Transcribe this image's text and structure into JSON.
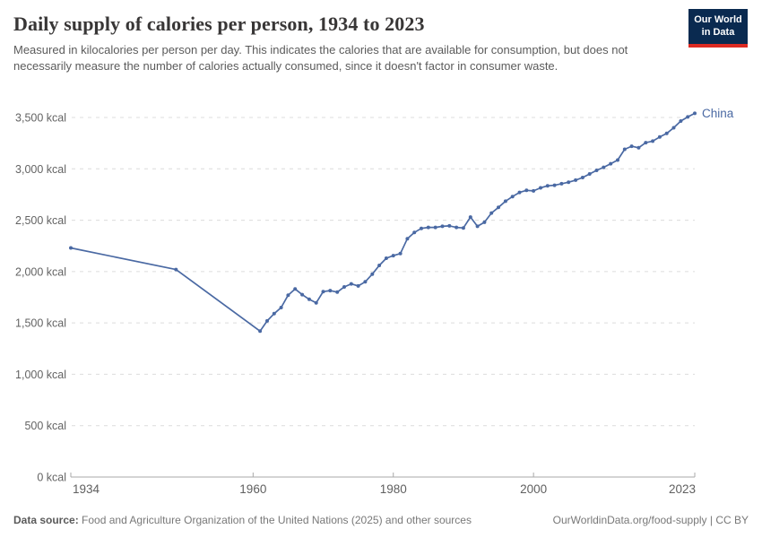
{
  "header": {
    "logo": {
      "line1": "Our World",
      "line2": "in Data"
    }
  },
  "chart_data": {
    "type": "line",
    "title": "Daily supply of calories per person, 1934 to 2023",
    "subtitle": "Measured in kilocalories per person per day. This indicates the calories that are available for consumption, but does not necessarily measure the number of calories actually consumed, since it doesn't factor in consumer waste.",
    "xlabel": "",
    "ylabel": "",
    "xlim": [
      1934,
      2023
    ],
    "ylim": [
      0,
      3500
    ],
    "x_ticks": [
      1934,
      1960,
      1980,
      2000,
      2023
    ],
    "y_ticks": [
      0,
      500,
      1000,
      1500,
      2000,
      2500,
      3000,
      3500
    ],
    "y_tick_suffix": " kcal",
    "grid": "horizontal-dashed",
    "legend_position": "end-of-line",
    "end_label": "China",
    "series": [
      {
        "name": "China",
        "color": "#4a69a3",
        "marker": "dot",
        "points": [
          [
            1934,
            2230
          ],
          [
            1949,
            2020
          ],
          [
            1961,
            1420
          ],
          [
            1962,
            1520
          ],
          [
            1963,
            1590
          ],
          [
            1964,
            1650
          ],
          [
            1965,
            1770
          ],
          [
            1966,
            1830
          ],
          [
            1967,
            1775
          ],
          [
            1968,
            1730
          ],
          [
            1969,
            1695
          ],
          [
            1970,
            1805
          ],
          [
            1971,
            1815
          ],
          [
            1972,
            1800
          ],
          [
            1973,
            1850
          ],
          [
            1974,
            1880
          ],
          [
            1975,
            1860
          ],
          [
            1976,
            1900
          ],
          [
            1977,
            1975
          ],
          [
            1978,
            2060
          ],
          [
            1979,
            2130
          ],
          [
            1980,
            2155
          ],
          [
            1981,
            2175
          ],
          [
            1982,
            2320
          ],
          [
            1983,
            2380
          ],
          [
            1984,
            2420
          ],
          [
            1985,
            2430
          ],
          [
            1986,
            2430
          ],
          [
            1987,
            2440
          ],
          [
            1988,
            2445
          ],
          [
            1989,
            2430
          ],
          [
            1990,
            2425
          ],
          [
            1991,
            2530
          ],
          [
            1992,
            2440
          ],
          [
            1993,
            2480
          ],
          [
            1994,
            2570
          ],
          [
            1995,
            2625
          ],
          [
            1996,
            2685
          ],
          [
            1997,
            2730
          ],
          [
            1998,
            2770
          ],
          [
            1999,
            2790
          ],
          [
            2000,
            2785
          ],
          [
            2001,
            2815
          ],
          [
            2002,
            2835
          ],
          [
            2003,
            2840
          ],
          [
            2004,
            2855
          ],
          [
            2005,
            2870
          ],
          [
            2006,
            2890
          ],
          [
            2007,
            2915
          ],
          [
            2008,
            2950
          ],
          [
            2009,
            2985
          ],
          [
            2010,
            3015
          ],
          [
            2011,
            3050
          ],
          [
            2012,
            3085
          ],
          [
            2013,
            3190
          ],
          [
            2014,
            3220
          ],
          [
            2015,
            3205
          ],
          [
            2016,
            3255
          ],
          [
            2017,
            3270
          ],
          [
            2018,
            3310
          ],
          [
            2019,
            3345
          ],
          [
            2020,
            3400
          ],
          [
            2021,
            3465
          ],
          [
            2022,
            3505
          ],
          [
            2023,
            3540
          ]
        ]
      }
    ],
    "colors": {
      "line": "#4a69a3",
      "gridline": "#dcdcdc",
      "axis": "#a8a8a8",
      "tick_label": "#606060",
      "logo_bg": "#0a2a50",
      "logo_red": "#dc2a22"
    }
  },
  "footer": {
    "source_label": "Data source:",
    "source_text": " Food and Agriculture Organization of the United Nations (2025) and other sources",
    "link_text": "OurWorldinData.org/food-supply | CC BY"
  }
}
